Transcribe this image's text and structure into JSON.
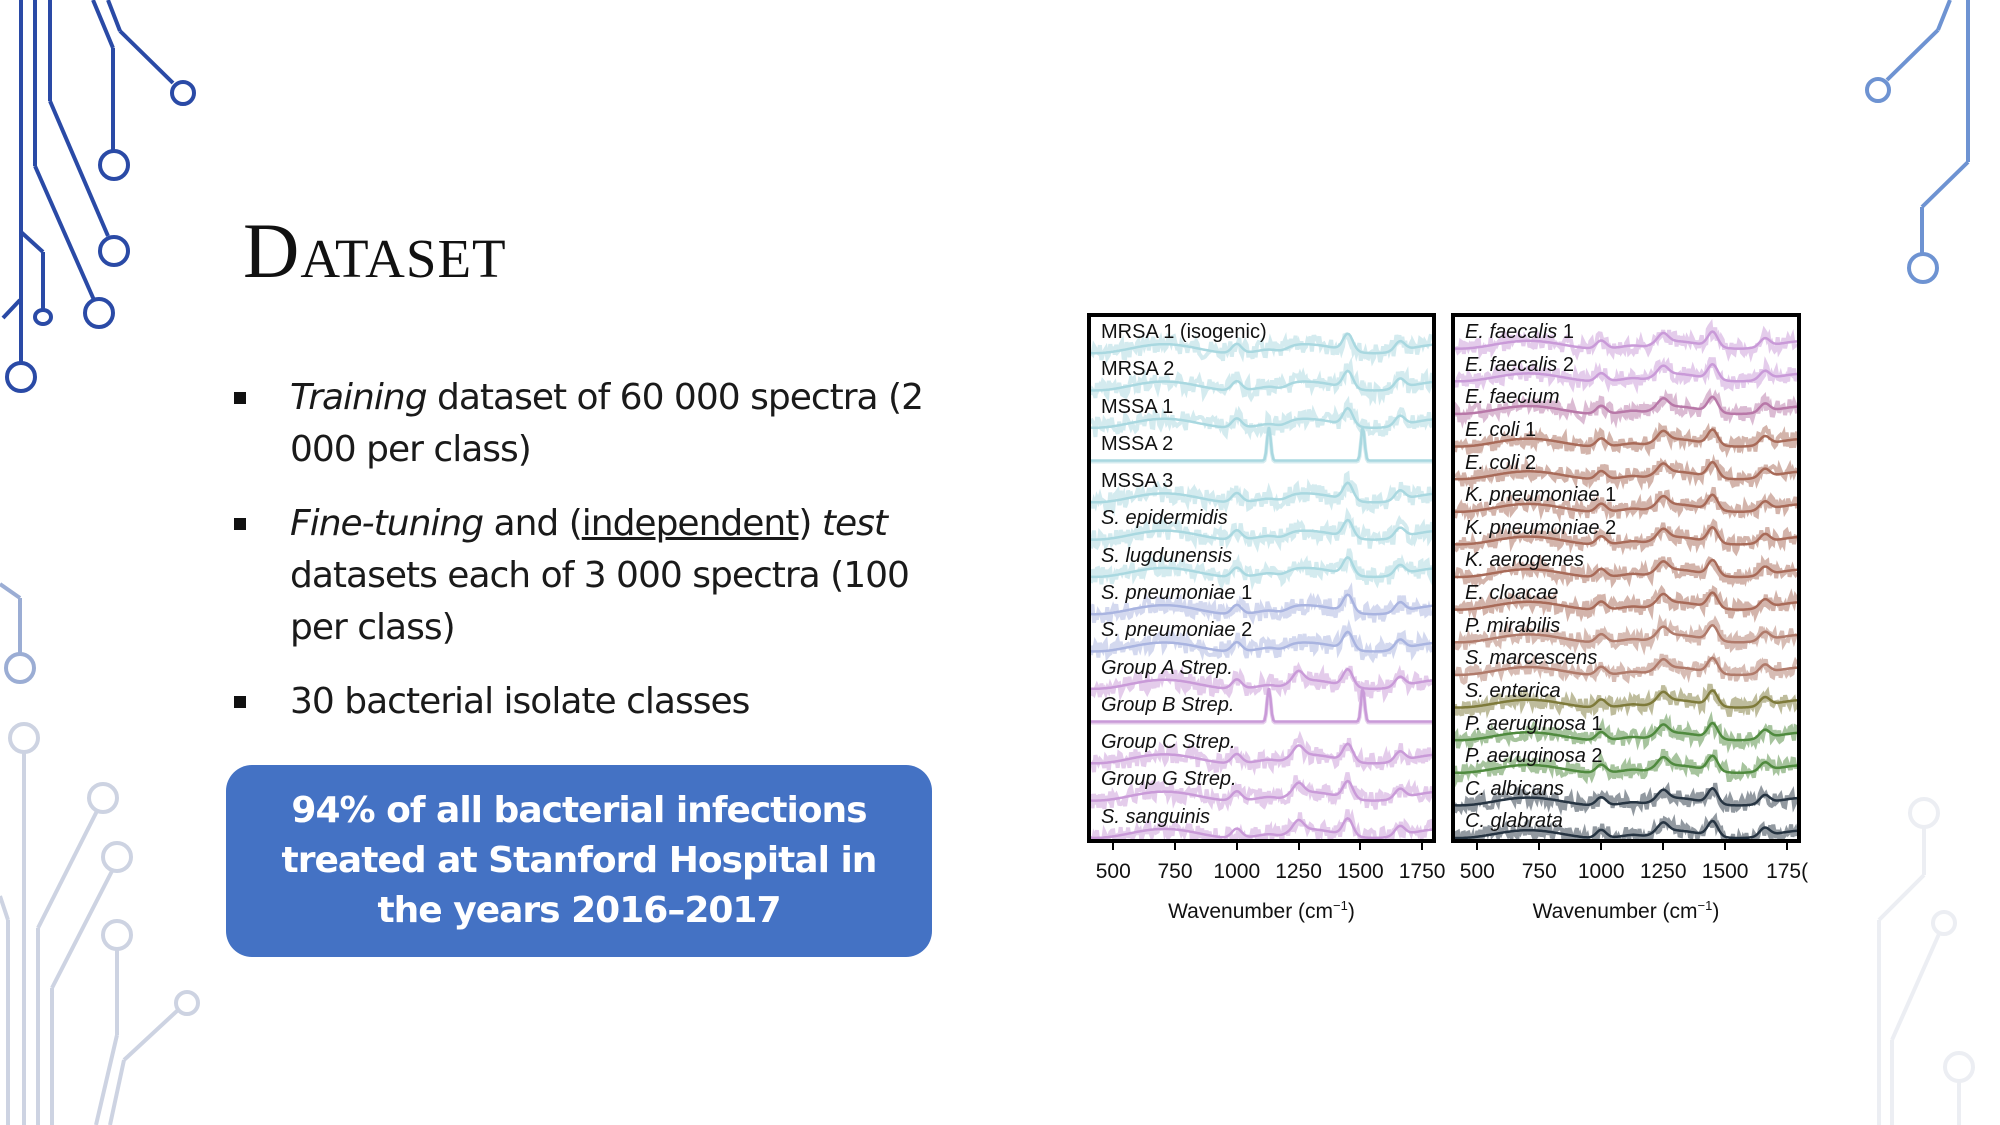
{
  "slide": {
    "title": "Dataset",
    "bullets": [
      {
        "segments": [
          {
            "text": "Training",
            "style": "italic"
          },
          {
            "text": " dataset of 60 000 spectra (2 000 per class)",
            "style": "normal"
          }
        ]
      },
      {
        "segments": [
          {
            "text": "Fine-tuning",
            "style": "italic"
          },
          {
            "text": " and (",
            "style": "normal"
          },
          {
            "text": "independent",
            "style": "underline"
          },
          {
            "text": ") ",
            "style": "normal"
          },
          {
            "text": "test",
            "style": "italic"
          },
          {
            "text": " datasets each of 3 000 spectra (100 per class)",
            "style": "normal"
          }
        ]
      },
      {
        "segments": [
          {
            "text": "30 bacterial isolate classes",
            "style": "normal"
          }
        ]
      }
    ],
    "callout": "94% of all bacterial infections treated at Stanford Hospital in the years 2016–2017",
    "callout_color": "#4472c4"
  },
  "chart_data": [
    {
      "type": "line",
      "title": "",
      "xlabel": "Wavenumber (cm⁻¹)",
      "ylabel": "",
      "xlim": [
        410,
        1790
      ],
      "x_ticks": [
        500,
        750,
        1000,
        1250,
        1500,
        1750
      ],
      "grid": false,
      "legend": "inline labels per stacked trace",
      "series": [
        {
          "name": "MRSA 1 (isogenic)",
          "italic": "",
          "color": "#a9d8e0",
          "peaks": [
            1000,
            1450,
            1660
          ]
        },
        {
          "name": "MRSA 2",
          "italic": "",
          "color": "#a9d8e0",
          "peaks": [
            1000,
            1450,
            1660
          ]
        },
        {
          "name": "MSSA 1",
          "italic": "",
          "color": "#a9d8e0",
          "peaks": [
            1000,
            1450,
            1660
          ]
        },
        {
          "name": "MSSA 2",
          "italic": "",
          "color": "#a9d8e0",
          "peaks": [
            1130,
            1510
          ],
          "sharp": true
        },
        {
          "name": "MSSA 3",
          "italic": "",
          "color": "#a9d8e0",
          "peaks": [
            1000,
            1450,
            1660
          ]
        },
        {
          "name": "S. epidermidis",
          "italic": "S. epidermidis",
          "color": "#a9d8e0",
          "peaks": [
            1000,
            1450,
            1660
          ]
        },
        {
          "name": "S. lugdunensis",
          "italic": "S. lugdunensis",
          "color": "#a9d8e0",
          "peaks": [
            1000,
            1450,
            1660
          ]
        },
        {
          "name": "S. pneumoniae 1",
          "italic": "S. pneumoniae",
          "color": "#a9b4e0",
          "peaks": [
            1000,
            1450,
            1660
          ]
        },
        {
          "name": "S. pneumoniae 2",
          "italic": "S. pneumoniae",
          "color": "#a9b4e0",
          "peaks": [
            1000,
            1450,
            1660
          ]
        },
        {
          "name": "Group A Strep.",
          "italic": "Group A Strep.",
          "color": "#c99ad8",
          "peaks": [
            1000,
            1250,
            1450,
            1660
          ]
        },
        {
          "name": "Group B Strep.",
          "italic": "Group B Strep.",
          "color": "#c99ad8",
          "peaks": [
            1130,
            1510
          ],
          "sharp": true
        },
        {
          "name": "Group C Strep.",
          "italic": "Group C Strep.",
          "color": "#c99ad8",
          "peaks": [
            1000,
            1250,
            1450,
            1660
          ]
        },
        {
          "name": "Group G Strep.",
          "italic": "Group G Strep.",
          "color": "#c99ad8",
          "peaks": [
            1000,
            1250,
            1450,
            1660
          ]
        },
        {
          "name": "S. sanguinis",
          "italic": "S. sanguinis",
          "color": "#c99ad8",
          "peaks": [
            1000,
            1250,
            1450,
            1660
          ]
        }
      ]
    },
    {
      "type": "line",
      "title": "",
      "xlabel": "Wavenumber (cm⁻¹)",
      "ylabel": "",
      "xlim": [
        410,
        1790
      ],
      "x_ticks": [
        500,
        750,
        1000,
        1250,
        1500,
        "175("
      ],
      "grid": false,
      "legend": "inline labels per stacked trace",
      "series": [
        {
          "name": "E. faecalis 1",
          "italic": "E. faecalis",
          "color": "#c99ad8",
          "peaks": [
            1000,
            1250,
            1450,
            1660
          ]
        },
        {
          "name": "E. faecalis 2",
          "italic": "E. faecalis",
          "color": "#c99ad8",
          "peaks": [
            1000,
            1250,
            1450,
            1660
          ]
        },
        {
          "name": "E. faecium",
          "italic": "E. faecium",
          "color": "#b878a8",
          "peaks": [
            1000,
            1250,
            1450,
            1660
          ]
        },
        {
          "name": "E. coli 1",
          "italic": "E. coli",
          "color": "#a86a58",
          "peaks": [
            1000,
            1250,
            1450,
            1660
          ]
        },
        {
          "name": "E. coli 2",
          "italic": "E. coli",
          "color": "#a86a58",
          "peaks": [
            1000,
            1250,
            1450,
            1660
          ]
        },
        {
          "name": "K. pneumoniae 1",
          "italic": "K. pneumoniae",
          "color": "#a86a58",
          "peaks": [
            1000,
            1250,
            1450,
            1660
          ]
        },
        {
          "name": "K. pneumoniae 2",
          "italic": "K. pneumoniae",
          "color": "#a86a58",
          "peaks": [
            1000,
            1250,
            1450,
            1660
          ]
        },
        {
          "name": "K. aerogenes",
          "italic": "K. aerogenes",
          "color": "#a86a58",
          "peaks": [
            1000,
            1250,
            1450,
            1660
          ]
        },
        {
          "name": "E. cloacae",
          "italic": "E. cloacae",
          "color": "#a86a58",
          "peaks": [
            1000,
            1250,
            1450,
            1660
          ]
        },
        {
          "name": "P. mirabilis",
          "italic": "P. mirabilis",
          "color": "#b07a6a",
          "peaks": [
            1000,
            1250,
            1450,
            1660
          ]
        },
        {
          "name": "S. marcescens",
          "italic": "S. marcescens",
          "color": "#b07a6a",
          "peaks": [
            1000,
            1250,
            1450,
            1660
          ]
        },
        {
          "name": "S. enterica",
          "italic": "S. enterica",
          "color": "#7e7a3a",
          "peaks": [
            1000,
            1250,
            1450,
            1660
          ]
        },
        {
          "name": "P. aeruginosa 1",
          "italic": "P. aeruginosa",
          "color": "#4f8a3e",
          "peaks": [
            1000,
            1250,
            1450,
            1660
          ]
        },
        {
          "name": "P. aeruginosa 2",
          "italic": "P. aeruginosa",
          "color": "#4f8a3e",
          "peaks": [
            1000,
            1250,
            1450,
            1660
          ]
        },
        {
          "name": "C. albicans",
          "italic": "C. albicans",
          "color": "#263442",
          "peaks": [
            1000,
            1250,
            1450,
            1660
          ]
        },
        {
          "name": "C. glabrata",
          "italic": "C. glabrata",
          "color": "#263442",
          "peaks": [
            1000,
            1250,
            1450,
            1660
          ]
        }
      ]
    }
  ]
}
